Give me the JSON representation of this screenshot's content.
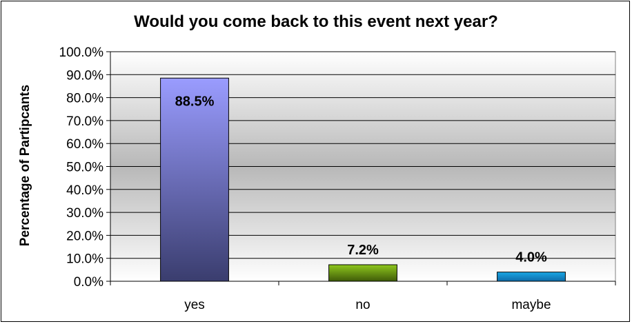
{
  "chart_data": {
    "type": "bar",
    "title": "Would you come back to this event next year?",
    "ylabel": "Percentage of Partipcants",
    "xlabel": "",
    "categories": [
      "yes",
      "no",
      "maybe"
    ],
    "values": [
      88.5,
      7.2,
      4.0
    ],
    "data_labels": [
      "88.5%",
      "7.2%",
      "4.0%"
    ],
    "ylim": [
      0,
      100
    ],
    "yticks": [
      0,
      10,
      20,
      30,
      40,
      50,
      60,
      70,
      80,
      90,
      100
    ],
    "ytick_labels": [
      "0.0%",
      "10.0%",
      "20.0%",
      "30.0%",
      "40.0%",
      "50.0%",
      "60.0%",
      "70.0%",
      "80.0%",
      "90.0%",
      "100.0%"
    ],
    "grid": true,
    "legend": "none",
    "bar_colors": [
      {
        "top": "#9a9cff",
        "bottom": "#3a3d6e"
      },
      {
        "top": "#8fc81e",
        "bottom": "#3e5a08"
      },
      {
        "top": "#1aa8e6",
        "bottom": "#0e6aa8"
      }
    ],
    "plot_background": {
      "top": "#ffffff",
      "middle": "#b8b8b8",
      "bottom": "#ffffff"
    }
  }
}
